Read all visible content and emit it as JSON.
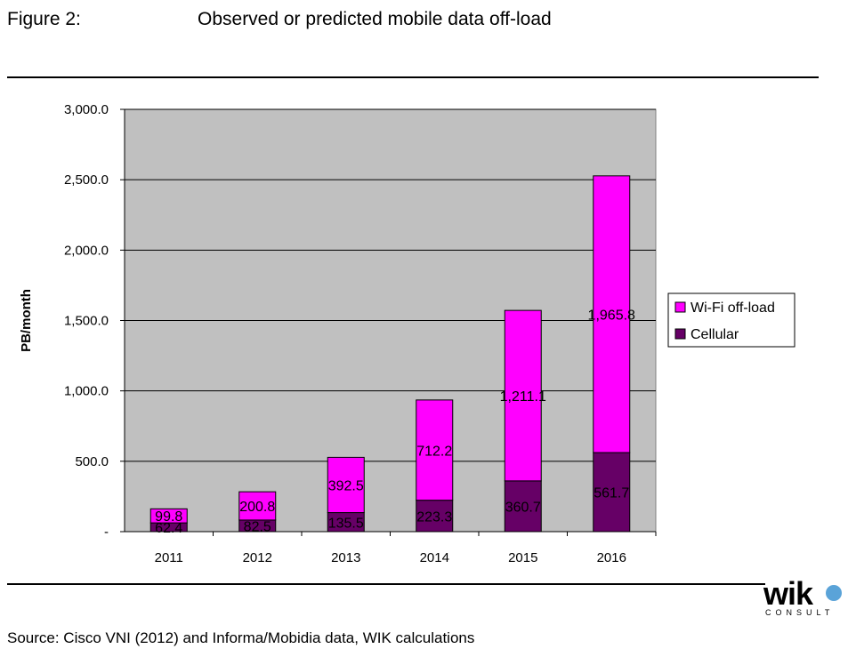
{
  "header": {
    "figure_label": "Figure 2:",
    "title": "Observed or predicted mobile data off-load"
  },
  "footer": {
    "source": "Source: Cisco VNI (2012) and Informa/Mobidia data, WIK calculations"
  },
  "logo": {
    "word": "wik",
    "sub": "CONSULT"
  },
  "colors": {
    "wifi": "#ff00ff",
    "cellular": "#660066",
    "plot_background": "#c0c0c0"
  },
  "chart_data": {
    "type": "bar",
    "stacked": true,
    "title": "Observed or predicted mobile data off-load",
    "xlabel": "",
    "ylabel": "PB/month",
    "ylim": [
      0,
      3000
    ],
    "yticks": [
      0,
      500,
      1000,
      1500,
      2000,
      2500,
      3000
    ],
    "ytick_labels": [
      "-",
      "500.0",
      "1,000.0",
      "1,500.0",
      "2,000.0",
      "2,500.0",
      "3,000.0"
    ],
    "grid": true,
    "legend_position": "right",
    "categories": [
      "2011",
      "2012",
      "2013",
      "2014",
      "2015",
      "2016"
    ],
    "series": [
      {
        "name": "Cellular",
        "color": "#660066",
        "values": [
          62.4,
          82.5,
          135.5,
          223.3,
          360.7,
          561.7
        ],
        "labels": [
          "62.4",
          "82.5",
          "135.5",
          "223.3",
          "360.7",
          "561.7"
        ]
      },
      {
        "name": "Wi-Fi off-load",
        "color": "#ff00ff",
        "values": [
          99.8,
          200.8,
          392.5,
          712.2,
          1211.1,
          1965.8
        ],
        "labels": [
          "99.8",
          "200.8",
          "392.5",
          "712.2",
          "1,211.1",
          "1,965.8"
        ]
      }
    ]
  }
}
